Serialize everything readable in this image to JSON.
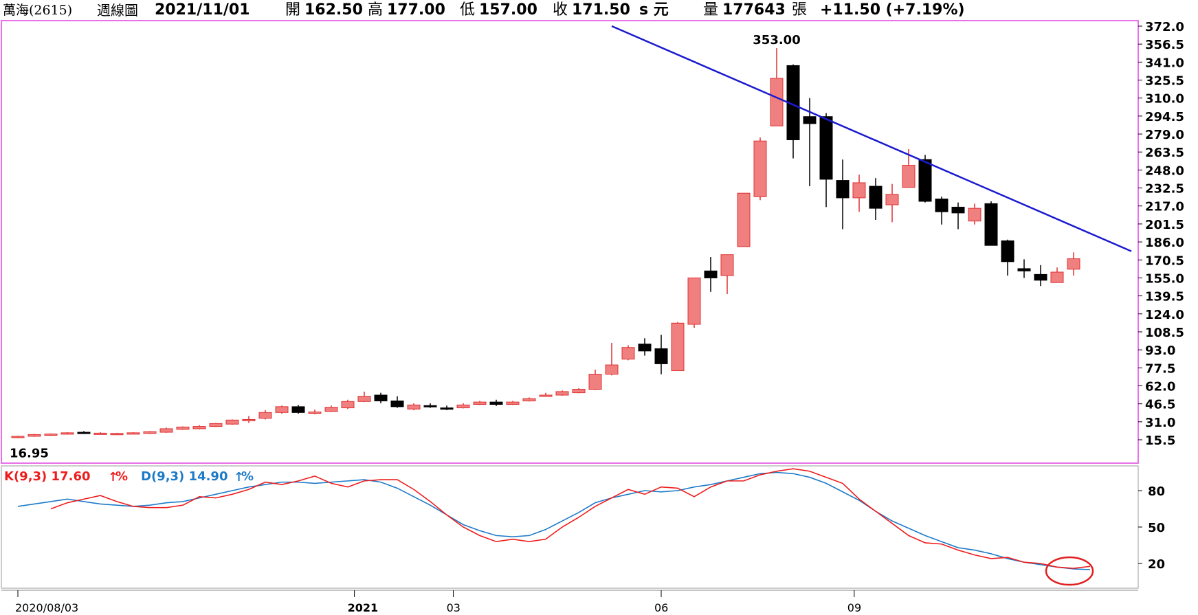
{
  "header": {
    "stock": "萬海(2615)",
    "period": "週線圖",
    "date": "2021/11/01",
    "open_label": "開",
    "open": "162.50",
    "high_label": "高",
    "high": "177.00",
    "low_label": "低",
    "low": "157.00",
    "close_label": "收",
    "close": "171.50",
    "currency": "s 元",
    "volume_label": "量",
    "volume": "177643",
    "volume_unit": "張",
    "change": "+11.50 (+7.19%)"
  },
  "colors": {
    "up_fill": "#f08080",
    "up_stroke": "#e03030",
    "down": "#000000",
    "trendline": "#1a1ad0",
    "k_line": "#ee1c1c",
    "d_line": "#1c7ac8",
    "frame": "#e040e0",
    "highlight": "#e02020"
  },
  "price_chart": {
    "y_ticks": [
      "372.0",
      "356.5",
      "341.0",
      "325.5",
      "310.0",
      "294.5",
      "279.0",
      "263.5",
      "248.0",
      "232.5",
      "217.0",
      "201.5",
      "186.0",
      "170.5",
      "155.0",
      "139.5",
      "124.0",
      "108.5",
      "93.0",
      "77.5",
      "62.0",
      "46.5",
      "31.0",
      "15.5"
    ],
    "max_label": "353.00",
    "min_label": "16.95"
  },
  "kd_panel": {
    "k_label": "K(9,3) 17.60",
    "d_label": "D(9,3) 14.90",
    "pct_label": "%",
    "y_ticks": [
      "80",
      "50",
      "20"
    ]
  },
  "x_axis": {
    "labels": [
      "2020/08/03",
      "2021",
      "03",
      "06",
      "09"
    ]
  },
  "chart_data": [
    {
      "type": "candlestick",
      "title": "萬海(2615) 週線圖",
      "ylim": [
        0,
        372
      ],
      "x_labels": [
        "2020/08/03",
        "2021",
        "03",
        "06",
        "09"
      ],
      "candles": [
        {
          "o": 17.5,
          "h": 19,
          "l": 16.95,
          "c": 18.5
        },
        {
          "o": 18.5,
          "h": 20.5,
          "l": 18,
          "c": 20
        },
        {
          "o": 20,
          "h": 21,
          "l": 19.5,
          "c": 20.5
        },
        {
          "o": 20.5,
          "h": 22,
          "l": 20,
          "c": 21.5
        },
        {
          "o": 22,
          "h": 23,
          "l": 21,
          "c": 21
        },
        {
          "o": 21,
          "h": 22,
          "l": 20.5,
          "c": 21.2
        },
        {
          "o": 20.5,
          "h": 21.5,
          "l": 20,
          "c": 21
        },
        {
          "o": 21,
          "h": 22,
          "l": 20.5,
          "c": 21.5
        },
        {
          "o": 21,
          "h": 23,
          "l": 20.5,
          "c": 22.5
        },
        {
          "o": 22,
          "h": 26,
          "l": 21.5,
          "c": 25
        },
        {
          "o": 24.5,
          "h": 27,
          "l": 24,
          "c": 26.5
        },
        {
          "o": 25,
          "h": 28,
          "l": 24.5,
          "c": 27
        },
        {
          "o": 27,
          "h": 30,
          "l": 26.5,
          "c": 29.5
        },
        {
          "o": 29,
          "h": 33,
          "l": 28.5,
          "c": 32.5
        },
        {
          "o": 32.5,
          "h": 36,
          "l": 30,
          "c": 33
        },
        {
          "o": 34,
          "h": 41,
          "l": 33,
          "c": 39
        },
        {
          "o": 39,
          "h": 45,
          "l": 38,
          "c": 44
        },
        {
          "o": 44,
          "h": 45.5,
          "l": 38,
          "c": 39
        },
        {
          "o": 39,
          "h": 41.5,
          "l": 37.5,
          "c": 39.5
        },
        {
          "o": 40,
          "h": 45,
          "l": 39.5,
          "c": 43.5
        },
        {
          "o": 43,
          "h": 50,
          "l": 42,
          "c": 48.5
        },
        {
          "o": 48.5,
          "h": 57,
          "l": 48,
          "c": 53
        },
        {
          "o": 54,
          "h": 56,
          "l": 47,
          "c": 49
        },
        {
          "o": 49,
          "h": 53,
          "l": 43,
          "c": 44
        },
        {
          "o": 42,
          "h": 47,
          "l": 41,
          "c": 45.5
        },
        {
          "o": 45,
          "h": 47,
          "l": 43,
          "c": 44.5
        },
        {
          "o": 43,
          "h": 45,
          "l": 41,
          "c": 42
        },
        {
          "o": 43,
          "h": 47,
          "l": 42.5,
          "c": 45.5
        },
        {
          "o": 46,
          "h": 49,
          "l": 45.5,
          "c": 48
        },
        {
          "o": 48,
          "h": 50,
          "l": 44.5,
          "c": 46
        },
        {
          "o": 46,
          "h": 49,
          "l": 45.5,
          "c": 48
        },
        {
          "o": 49,
          "h": 52,
          "l": 48.5,
          "c": 51
        },
        {
          "o": 53,
          "h": 56,
          "l": 52.5,
          "c": 54
        },
        {
          "o": 54,
          "h": 58,
          "l": 53.5,
          "c": 57
        },
        {
          "o": 56,
          "h": 60,
          "l": 55.5,
          "c": 59
        },
        {
          "o": 59,
          "h": 76,
          "l": 58.5,
          "c": 72
        },
        {
          "o": 72,
          "h": 99,
          "l": 71,
          "c": 80
        },
        {
          "o": 85,
          "h": 97,
          "l": 84,
          "c": 95
        },
        {
          "o": 98,
          "h": 103,
          "l": 88,
          "c": 92
        },
        {
          "o": 94,
          "h": 106,
          "l": 72,
          "c": 81
        },
        {
          "o": 75,
          "h": 117,
          "l": 75,
          "c": 116
        },
        {
          "o": 115,
          "h": 155,
          "l": 112,
          "c": 155
        },
        {
          "o": 161,
          "h": 173,
          "l": 143,
          "c": 155
        },
        {
          "o": 157,
          "h": 175,
          "l": 141,
          "c": 175
        },
        {
          "o": 182,
          "h": 228,
          "l": 182,
          "c": 228
        },
        {
          "o": 225,
          "h": 276,
          "l": 222,
          "c": 273
        },
        {
          "o": 286,
          "h": 353,
          "l": 286,
          "c": 327
        },
        {
          "o": 338,
          "h": 339,
          "l": 258,
          "c": 274
        },
        {
          "o": 294,
          "h": 310,
          "l": 234,
          "c": 288
        },
        {
          "o": 294,
          "h": 297,
          "l": 216,
          "c": 240
        },
        {
          "o": 239,
          "h": 257,
          "l": 197,
          "c": 224
        },
        {
          "o": 224,
          "h": 244,
          "l": 212,
          "c": 237
        },
        {
          "o": 234,
          "h": 241,
          "l": 205,
          "c": 215
        },
        {
          "o": 218,
          "h": 236,
          "l": 203,
          "c": 227
        },
        {
          "o": 233,
          "h": 266,
          "l": 233,
          "c": 252
        },
        {
          "o": 257,
          "h": 261,
          "l": 220,
          "c": 221
        },
        {
          "o": 223,
          "h": 225,
          "l": 201,
          "c": 212
        },
        {
          "o": 216,
          "h": 220,
          "l": 197,
          "c": 211
        },
        {
          "o": 204,
          "h": 219,
          "l": 201,
          "c": 215
        },
        {
          "o": 219,
          "h": 221,
          "l": 183,
          "c": 183
        },
        {
          "o": 187,
          "h": 188,
          "l": 157,
          "c": 169
        },
        {
          "o": 163,
          "h": 171,
          "l": 155,
          "c": 161
        },
        {
          "o": 158,
          "h": 166,
          "l": 148,
          "c": 153
        },
        {
          "o": 151,
          "h": 164,
          "l": 151,
          "c": 160
        },
        {
          "o": 162.5,
          "h": 177,
          "l": 157,
          "c": 171.5
        }
      ],
      "annotations": [
        "353.00",
        "16.95"
      ],
      "trendline": {
        "from_candle": 36,
        "from_price": 372,
        "to_candle": 67.5,
        "to_price": 178
      }
    },
    {
      "type": "line",
      "title": "KD(9,3)",
      "ylim": [
        0,
        100
      ],
      "series": [
        {
          "name": "K(9,3)",
          "values": [
            65,
            70,
            73,
            76,
            71,
            67,
            66,
            66,
            68,
            75,
            74,
            77,
            81,
            87,
            85,
            88,
            92,
            86,
            83,
            88,
            89,
            89,
            81,
            71,
            60,
            50,
            43,
            38,
            40,
            38,
            40,
            50,
            58,
            67,
            74,
            81,
            77,
            83,
            82,
            75,
            83,
            88,
            88,
            93,
            96,
            98,
            96,
            91,
            86,
            73,
            63,
            53,
            43,
            37,
            36,
            31,
            27,
            24,
            25,
            21,
            20,
            17,
            16,
            17.6
          ],
          "x_start": 0
        },
        {
          "name": "D(9,3)",
          "values": [
            67,
            69,
            71,
            73,
            71,
            69,
            68,
            67,
            68,
            70,
            71,
            74,
            77,
            80,
            83,
            85,
            87,
            87,
            86,
            87,
            88,
            89,
            87,
            82,
            75,
            68,
            60,
            52,
            47,
            43,
            42,
            43,
            48,
            55,
            62,
            70,
            74,
            77,
            80,
            79,
            80,
            83,
            85,
            88,
            91,
            94,
            95,
            94,
            91,
            86,
            79,
            72,
            63,
            55,
            49,
            43,
            38,
            33,
            31,
            28,
            24,
            21,
            19,
            17,
            15.5,
            14.9
          ],
          "x_start": -2
        }
      ]
    }
  ]
}
